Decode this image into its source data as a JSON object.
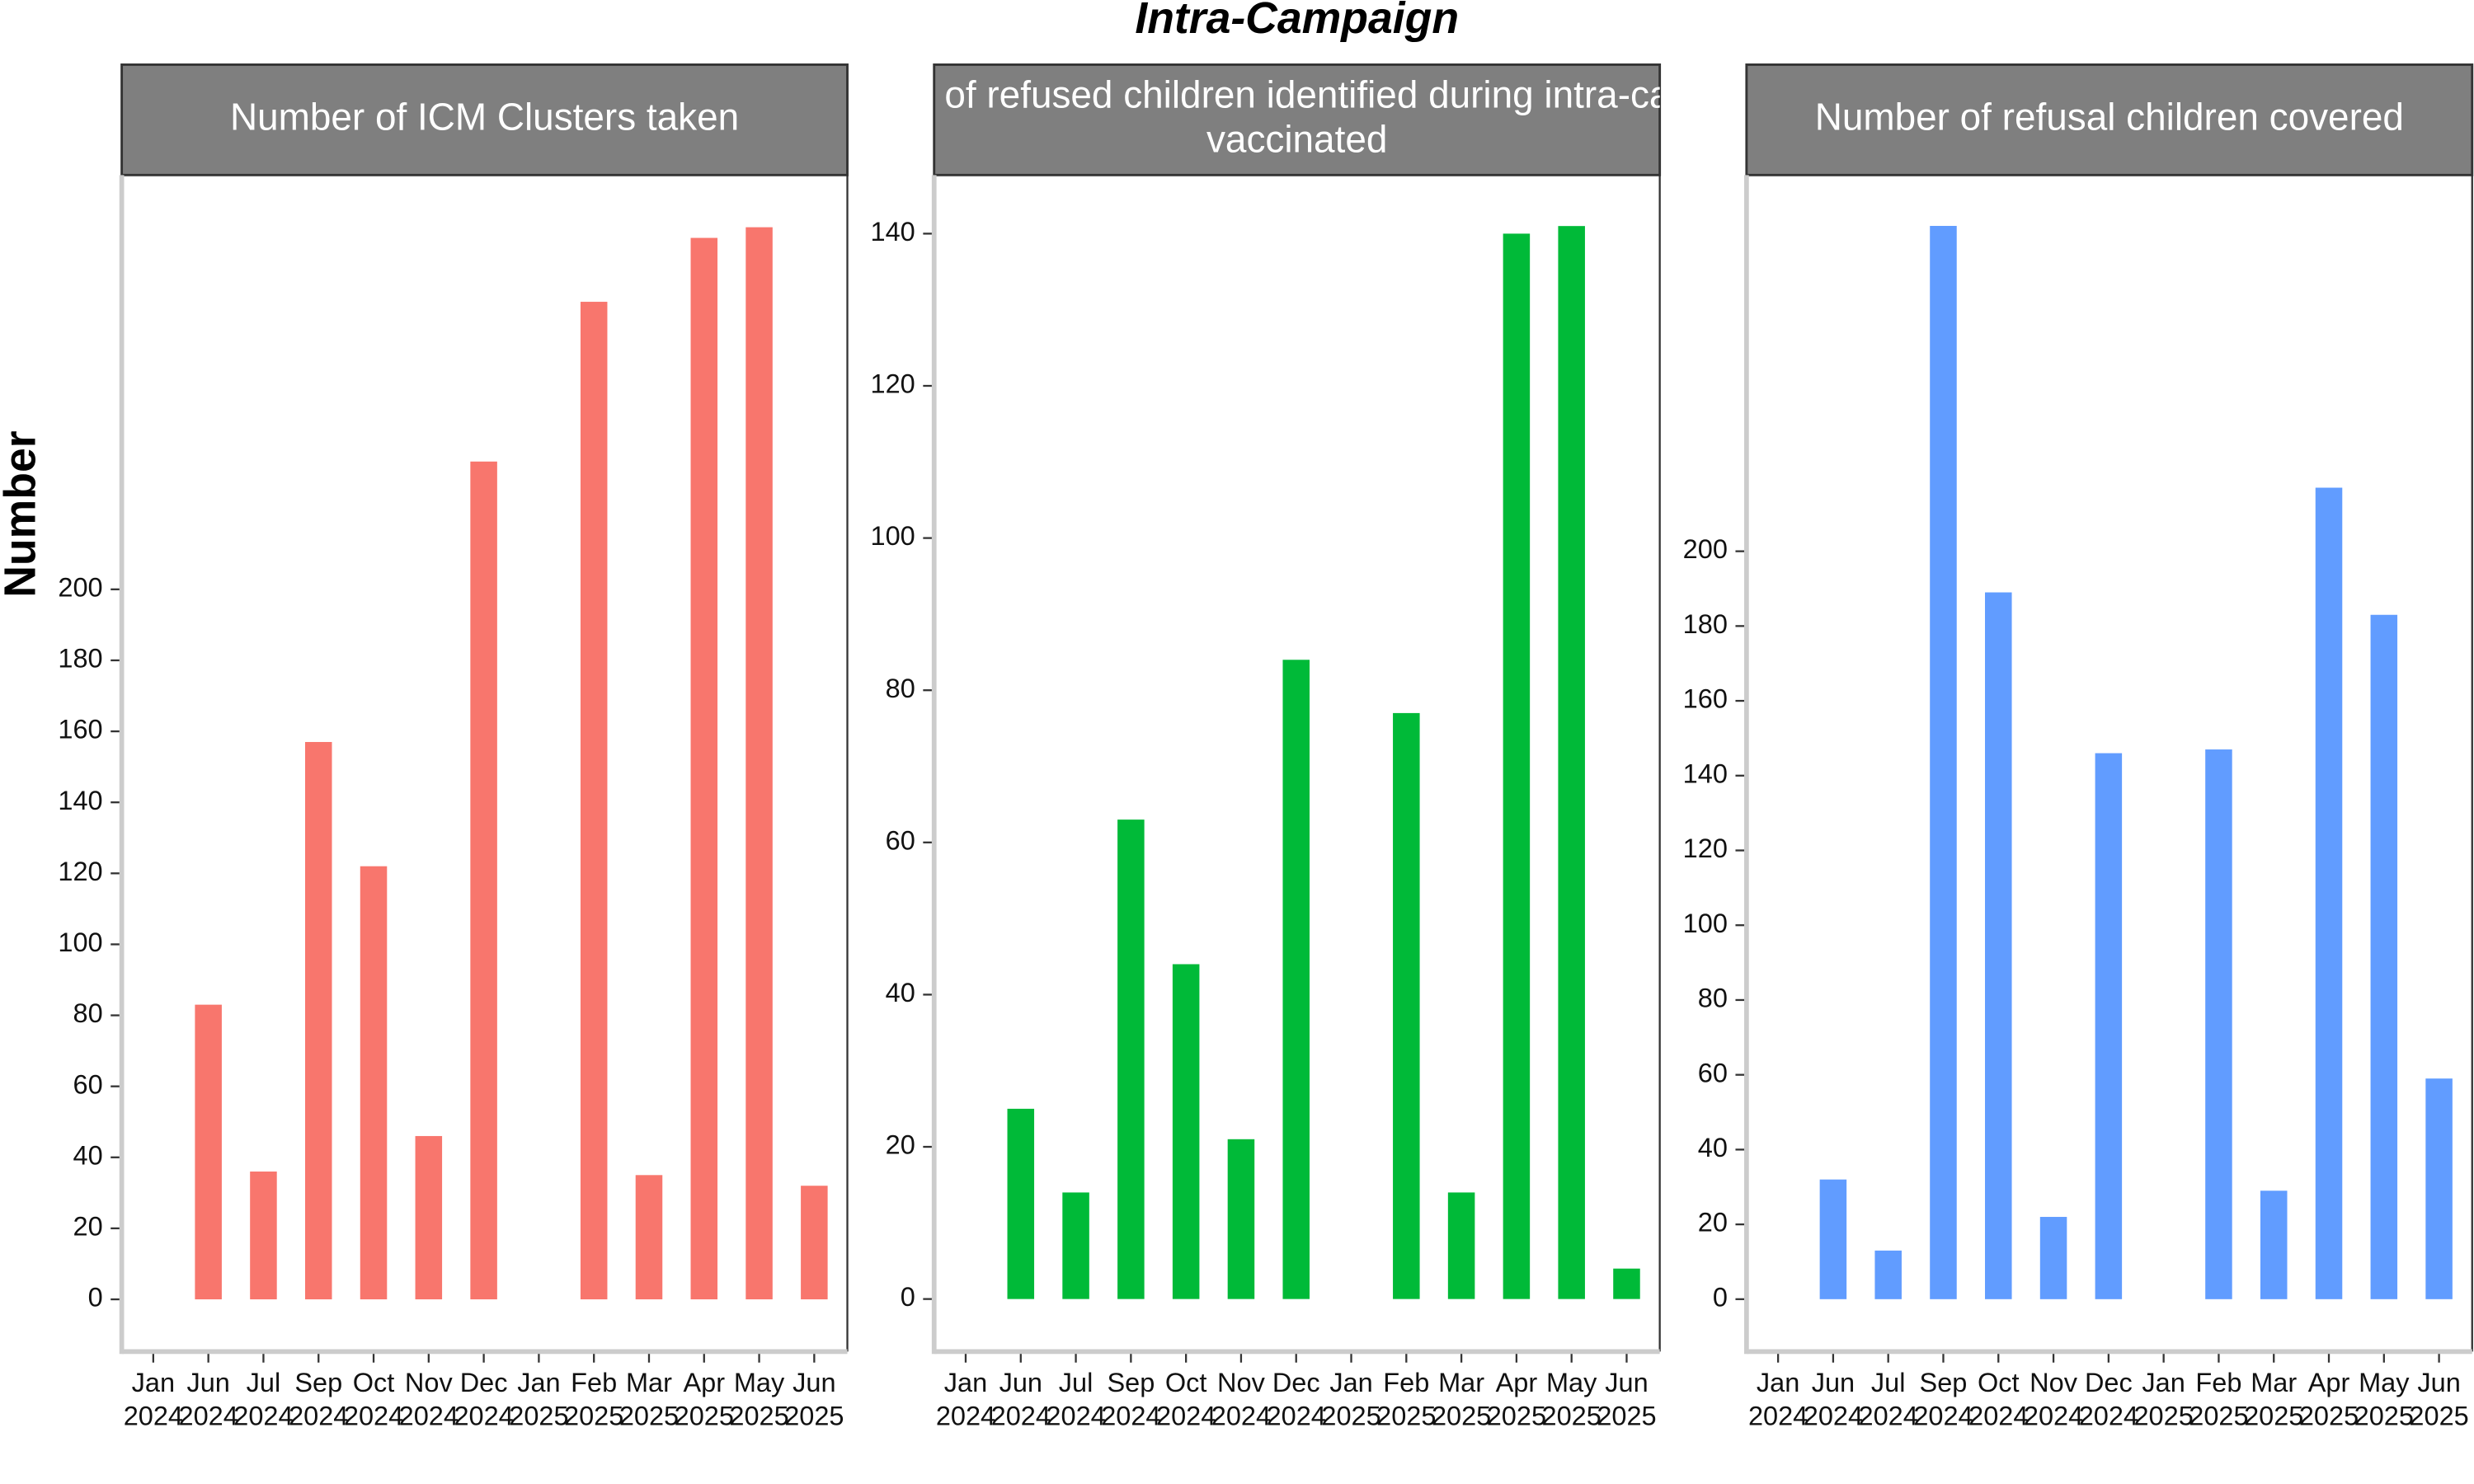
{
  "title": "Intra-Campaign",
  "ylabel": "Number",
  "chart_data": [
    {
      "type": "bar",
      "title": [
        "Number of ICM Clusters taken"
      ],
      "categories": [
        [
          "Jan",
          "2024"
        ],
        [
          "Jun",
          "2024"
        ],
        [
          "Jul",
          "2024"
        ],
        [
          "Sep",
          "2024"
        ],
        [
          "Oct",
          "2024"
        ],
        [
          "Nov",
          "2024"
        ],
        [
          "Dec",
          "2024"
        ],
        [
          "Jan",
          "2025"
        ],
        [
          "Feb",
          "2025"
        ],
        [
          "Mar",
          "2025"
        ],
        [
          "Apr",
          "2025"
        ],
        [
          "May",
          "2025"
        ],
        [
          "Jun",
          "2025"
        ]
      ],
      "values": [
        null,
        83,
        36,
        157,
        122,
        46,
        236,
        null,
        281,
        35,
        299,
        302,
        32
      ],
      "color": "#F8766D",
      "ylim": [
        -14.7,
        316.7
      ],
      "yticks": [
        0,
        20,
        40,
        60,
        80,
        100,
        120,
        140,
        160,
        180,
        200
      ]
    },
    {
      "type": "bar",
      "title": [
        "Number of refused children identified during intra-campaign",
        "vaccinated"
      ],
      "categories": [
        [
          "Jan",
          "2024"
        ],
        [
          "Jun",
          "2024"
        ],
        [
          "Jul",
          "2024"
        ],
        [
          "Sep",
          "2024"
        ],
        [
          "Oct",
          "2024"
        ],
        [
          "Nov",
          "2024"
        ],
        [
          "Dec",
          "2024"
        ],
        [
          "Jan",
          "2025"
        ],
        [
          "Feb",
          "2025"
        ],
        [
          "Mar",
          "2025"
        ],
        [
          "Apr",
          "2025"
        ],
        [
          "May",
          "2025"
        ],
        [
          "Jun",
          "2025"
        ]
      ],
      "values": [
        null,
        25,
        14,
        63,
        44,
        21,
        84,
        null,
        77,
        14,
        140,
        141,
        4
      ],
      "color": "#00BA38",
      "ylim": [
        -6.9,
        147.7
      ],
      "yticks": [
        0,
        20,
        40,
        60,
        80,
        100,
        120,
        140
      ]
    },
    {
      "type": "bar",
      "title": [
        "Number of refusal children covered"
      ],
      "categories": [
        [
          "Jan",
          "2024"
        ],
        [
          "Jun",
          "2024"
        ],
        [
          "Jul",
          "2024"
        ],
        [
          "Sep",
          "2024"
        ],
        [
          "Oct",
          "2024"
        ],
        [
          "Nov",
          "2024"
        ],
        [
          "Dec",
          "2024"
        ],
        [
          "Jan",
          "2025"
        ],
        [
          "Feb",
          "2025"
        ],
        [
          "Mar",
          "2025"
        ],
        [
          "Apr",
          "2025"
        ],
        [
          "May",
          "2025"
        ],
        [
          "Jun",
          "2025"
        ]
      ],
      "values": [
        null,
        32,
        13,
        287,
        189,
        22,
        146,
        null,
        147,
        29,
        217,
        183,
        59
      ],
      "color": "#619CFF",
      "ylim": [
        -14,
        300.6
      ],
      "yticks": [
        0,
        20,
        40,
        60,
        80,
        100,
        120,
        140,
        160,
        180,
        200
      ]
    }
  ]
}
